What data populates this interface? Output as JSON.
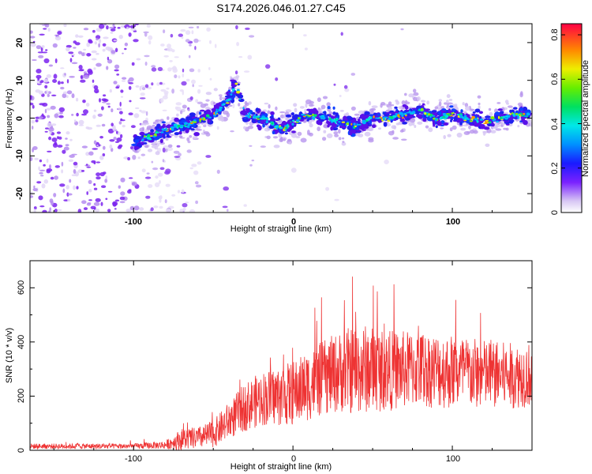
{
  "title": "S174.2026.046.01.27.C45",
  "chart_data": [
    {
      "type": "heatmap",
      "xlabel": "Height of straight line (km)",
      "ylabel": "Frequency (Hz)",
      "xlim": [
        -165,
        150
      ],
      "ylim": [
        -25,
        25
      ],
      "x_ticks": [
        -100,
        0,
        100
      ],
      "y_ticks": [
        -20,
        -10,
        0,
        10,
        20
      ],
      "colorbar": {
        "label": "Normalized spectral amplitude",
        "range": [
          0,
          0.85
        ],
        "ticks": [
          0.0,
          0.2,
          0.4,
          0.6,
          0.8
        ]
      },
      "ridge": {
        "x": [
          -100,
          -90,
          -80,
          -70,
          -60,
          -50,
          -40,
          -36,
          -30,
          -20,
          -10,
          -5,
          0,
          10,
          20,
          30,
          40,
          50,
          60,
          70,
          80,
          90,
          100,
          110,
          120,
          130,
          140,
          150
        ],
        "frequency": [
          -6,
          -5,
          -3,
          -2,
          -1,
          1,
          5,
          9,
          1,
          0,
          -2,
          -3,
          -1,
          1,
          0,
          -1,
          -2,
          0,
          0,
          1,
          2,
          0,
          1,
          0,
          -1,
          0,
          1,
          1
        ]
      }
    },
    {
      "type": "line",
      "xlabel": "Height of straight line (km)",
      "ylabel": "SNR (10 * v/v)",
      "xlim": [
        -165,
        150
      ],
      "ylim": [
        0,
        700
      ],
      "x_ticks": [
        -100,
        0,
        100
      ],
      "y_ticks": [
        0,
        200,
        400,
        600
      ],
      "series_color": "#ee3333",
      "envelope": {
        "x": [
          -165,
          -100,
          -80,
          -70,
          -60,
          -50,
          -40,
          -30,
          -20,
          -10,
          0,
          10,
          20,
          30,
          40,
          50,
          60,
          80,
          100,
          120,
          140,
          150
        ],
        "mean": [
          15,
          15,
          20,
          40,
          45,
          60,
          110,
          160,
          190,
          200,
          210,
          240,
          270,
          290,
          300,
          300,
          295,
          300,
          290,
          280,
          275,
          280
        ],
        "spread": [
          10,
          10,
          15,
          40,
          40,
          50,
          70,
          90,
          100,
          110,
          120,
          130,
          140,
          150,
          170,
          160,
          150,
          140,
          140,
          130,
          120,
          120
        ]
      }
    }
  ]
}
